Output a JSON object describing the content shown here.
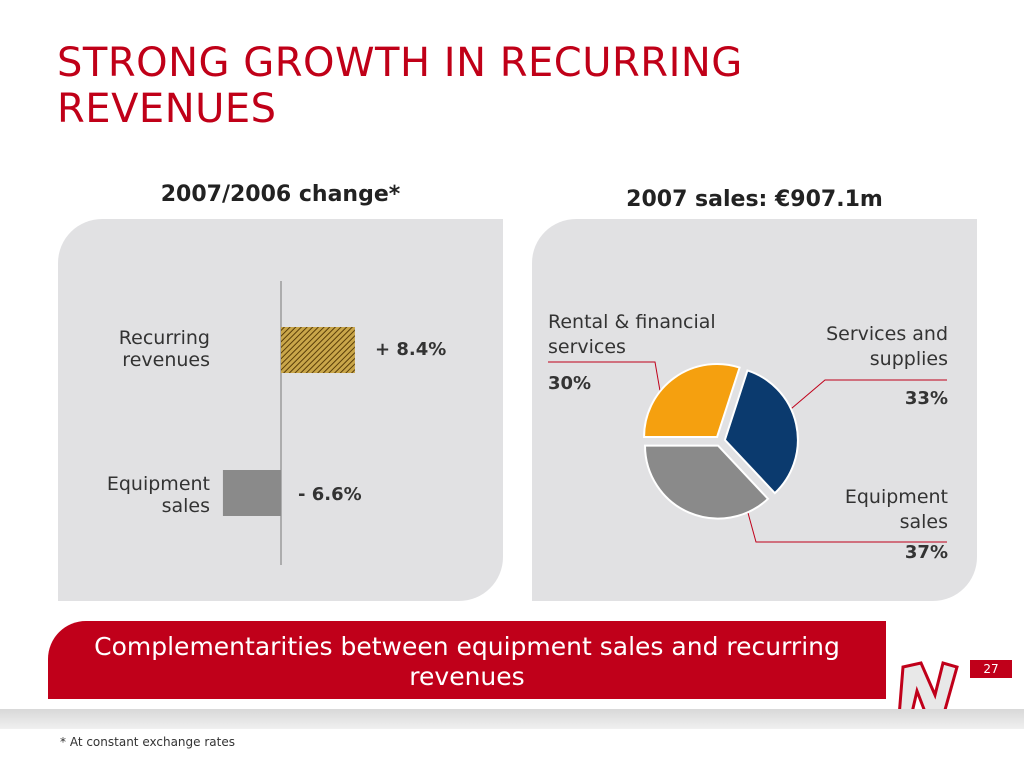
{
  "title": "STRONG GROWTH IN RECURRING REVENUES",
  "banner": "Complementarities between equipment sales and recurring revenues",
  "page_number": "27",
  "footnote": "* At constant exchange rates",
  "colors": {
    "accent": "#c0001a",
    "panel": "#e1e1e3",
    "hatch_bar": "#8a6a20",
    "neg_bar": "#8a8a8a",
    "pie_services": "#0b3a6e",
    "pie_equipment": "#8a8a8a",
    "pie_rental": "#f5a00f"
  },
  "chart_data": [
    {
      "type": "bar",
      "orientation": "horizontal",
      "title": "2007/2006 change*",
      "categories": [
        "Recurring revenues",
        "Equipment sales"
      ],
      "values": [
        8.4,
        -6.6
      ],
      "value_labels": [
        "+ 8.4%",
        "- 6.6%"
      ],
      "unit": "%",
      "grid": false
    },
    {
      "type": "pie",
      "title": "2007 sales: €907.1m",
      "slices": [
        {
          "label": "Services and supplies",
          "value": 33,
          "value_label": "33%"
        },
        {
          "label": "Equipment sales",
          "value": 37,
          "value_label": "37%"
        },
        {
          "label": "Rental & financial services",
          "value": 30,
          "value_label": "30%"
        }
      ],
      "legend": "none"
    }
  ]
}
